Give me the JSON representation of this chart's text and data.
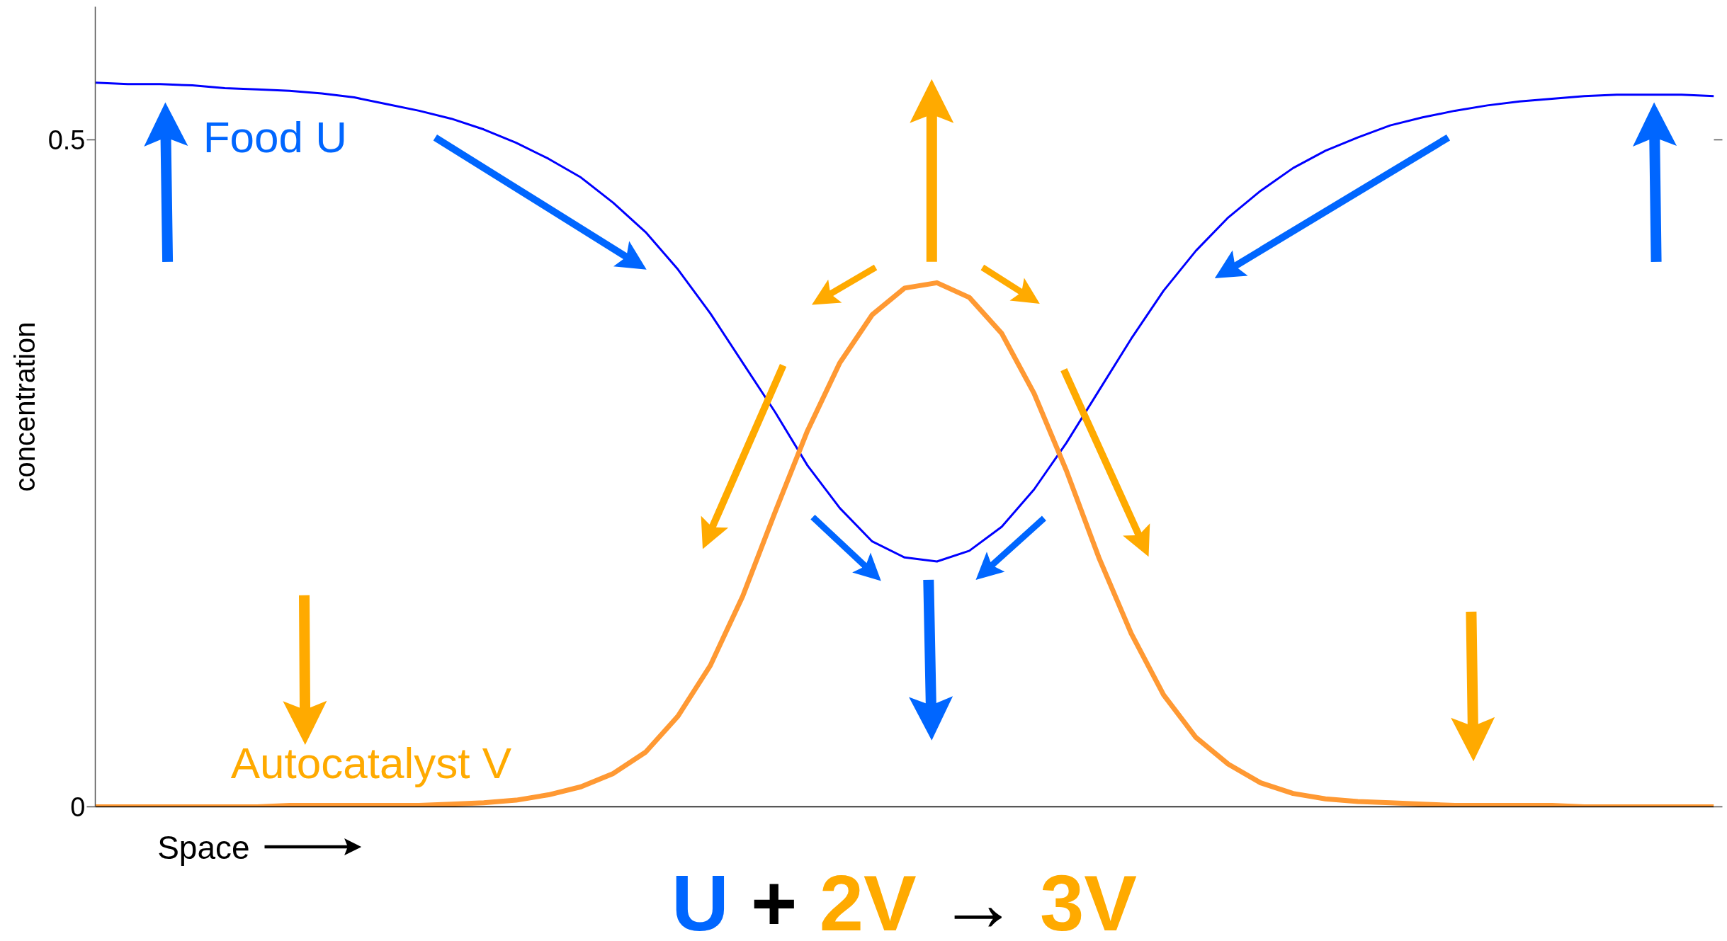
{
  "chart_data": {
    "type": "line",
    "xlabel": "Space",
    "ylabel": "concentration",
    "annotations": [
      "U + 2V → 3V"
    ],
    "categories": [
      null,
      null,
      null,
      null,
      null,
      null,
      null,
      null,
      null,
      null,
      null,
      null,
      null,
      null,
      null,
      null,
      null,
      null,
      null,
      null,
      null,
      null,
      null,
      null,
      null,
      null,
      null,
      null,
      null,
      null,
      null,
      null,
      null,
      null,
      null,
      null,
      null,
      null,
      null,
      null,
      null,
      null,
      null,
      null,
      null,
      null,
      null,
      null,
      null,
      null,
      null
    ],
    "series": [
      {
        "name": "Food U",
        "color": "#0000ff",
        "values": [
          0.543,
          0.542,
          0.542,
          0.541,
          0.539,
          0.538,
          0.537,
          0.535,
          0.532,
          0.527,
          0.522,
          0.516,
          0.508,
          0.498,
          0.486,
          0.472,
          0.453,
          0.431,
          0.403,
          0.37,
          0.333,
          0.296,
          0.256,
          0.224,
          0.199,
          0.187,
          0.184,
          0.192,
          0.21,
          0.238,
          0.273,
          0.312,
          0.351,
          0.387,
          0.417,
          0.442,
          0.462,
          0.479,
          0.492,
          0.502,
          0.511,
          0.517,
          0.522,
          0.526,
          0.529,
          0.531,
          0.533,
          0.534,
          0.534,
          0.534,
          0.533
        ]
      },
      {
        "name": "Autocatalyst V",
        "color": "#ff9933",
        "values": [
          0,
          0,
          0,
          0,
          0,
          0,
          0.001,
          0.001,
          0.001,
          0.001,
          0.001,
          0.002,
          0.003,
          0.005,
          0.009,
          0.015,
          0.025,
          0.041,
          0.068,
          0.106,
          0.158,
          0.221,
          0.282,
          0.333,
          0.369,
          0.389,
          0.393,
          0.382,
          0.355,
          0.31,
          0.252,
          0.187,
          0.13,
          0.084,
          0.052,
          0.032,
          0.018,
          0.01,
          0.006,
          0.004,
          0.003,
          0.002,
          0.001,
          0.001,
          0.001,
          0.001,
          0,
          0,
          0,
          0,
          0
        ]
      }
    ],
    "ylim": [
      0,
      0.6
    ],
    "yticks": [
      0,
      0.5
    ],
    "tick_labels": "y"
  }
}
